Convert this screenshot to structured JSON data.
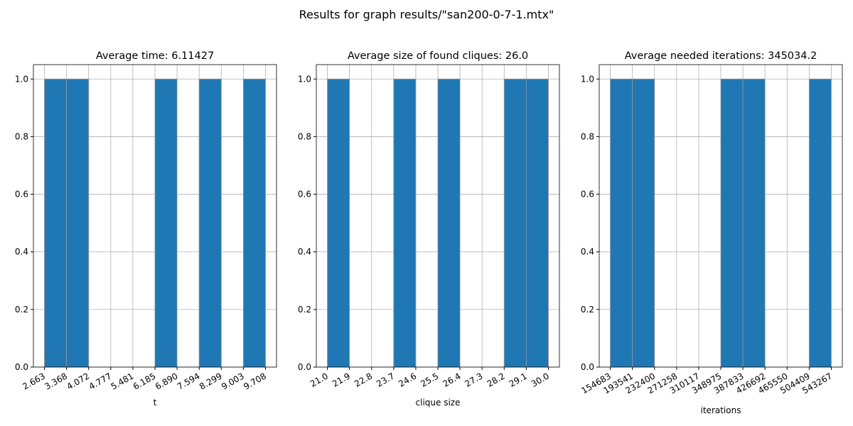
{
  "title": "Results for graph results/\"san200-0-7-1.mtx\"",
  "chart_data": [
    {
      "type": "histogram",
      "title": "Average time: 6.11427",
      "xlabel": "t",
      "color": "#1f77b4",
      "grid": true,
      "bins": [
        2.663,
        3.368,
        4.072,
        4.777,
        5.481,
        6.185,
        6.89,
        7.594,
        8.299,
        9.003,
        9.708
      ],
      "values": [
        1,
        1,
        0,
        0,
        0,
        1,
        0,
        1,
        0,
        1
      ],
      "xlim": [
        2.311,
        10.06
      ],
      "xticks": [
        2.663,
        3.368,
        4.072,
        4.777,
        5.481,
        6.185,
        {
          "value": 6.89,
          "label": "6.890"
        },
        7.594,
        8.299,
        9.003,
        9.708
      ],
      "ylim": [
        0,
        1.05
      ],
      "yticks": [
        {
          "value": 0,
          "label": "0.0"
        },
        0.2,
        0.4,
        0.6,
        0.8,
        {
          "value": 1,
          "label": "1.0"
        }
      ]
    },
    {
      "type": "histogram",
      "title": "Average size of found cliques: 26.0",
      "xlabel": "clique size",
      "color": "#1f77b4",
      "grid": true,
      "bins": [
        21,
        21.9,
        22.8,
        23.7,
        24.6,
        25.5,
        26.4,
        27.3,
        28.2,
        29.1,
        30
      ],
      "values": [
        1,
        0,
        0,
        1,
        0,
        1,
        0,
        0,
        1,
        1
      ],
      "xlim": [
        20.55,
        30.45
      ],
      "xticks": [
        {
          "value": 21,
          "label": "21.0"
        },
        21.9,
        22.8,
        23.7,
        24.6,
        25.5,
        26.4,
        27.3,
        28.2,
        29.1,
        {
          "value": 30,
          "label": "30.0"
        }
      ],
      "ylim": [
        0,
        1.05
      ],
      "yticks": [
        {
          "value": 0,
          "label": "0.0"
        },
        0.2,
        0.4,
        0.6,
        0.8,
        {
          "value": 1,
          "label": "1.0"
        }
      ]
    },
    {
      "type": "histogram",
      "title": "Average needed iterations: 345034.2",
      "xlabel": "iterations",
      "color": "#1f77b4",
      "grid": true,
      "bins": [
        154683,
        193541,
        232400,
        271258,
        310117,
        348975,
        387833,
        426692,
        465550,
        504409,
        543267
      ],
      "values": [
        1,
        1,
        0,
        0,
        0,
        1,
        1,
        0,
        0,
        1
      ],
      "xlim": [
        135254,
        562696
      ],
      "xticks": [
        154683,
        193541,
        232400,
        271258,
        310117,
        348975,
        387833,
        426692,
        465550,
        504409,
        543267
      ],
      "ylim": [
        0,
        1.05
      ],
      "yticks": [
        {
          "value": 0,
          "label": "0.0"
        },
        0.2,
        0.4,
        0.6,
        0.8,
        {
          "value": 1,
          "label": "1.0"
        }
      ]
    }
  ]
}
